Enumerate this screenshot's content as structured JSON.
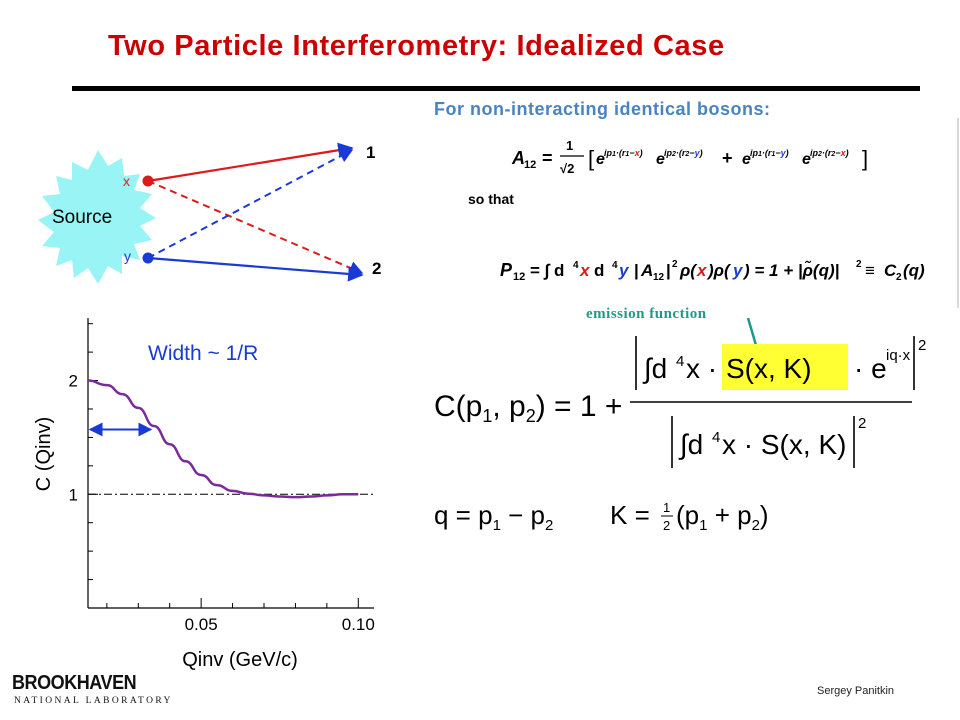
{
  "title": "Two Particle Interferometry: Idealized Case",
  "subtitle": "For non-interacting identical bosons:",
  "diagram": {
    "source_label": "Source",
    "point_x": "x",
    "point_y": "y",
    "detector_1": "1",
    "detector_2": "2",
    "colors": {
      "red": "#dd1a1a",
      "blue": "#1a3ad6",
      "source_fill": "#99f5f5"
    }
  },
  "equations": {
    "a12_lhs": "A",
    "a12_sub": "12",
    "so_that": "so that",
    "p12_lhs": "P",
    "emission_function_label": "emission function"
  },
  "chart_data": {
    "type": "line",
    "title": "Width ~ 1/R",
    "xlabel": "Qinv (GeV/c)",
    "ylabel": "C (Qinv)",
    "x_tick_labels": [
      "0.05",
      "0.10"
    ],
    "y_tick_labels": [
      "1",
      "2"
    ],
    "xlim": [
      0.014,
      0.105
    ],
    "ylim": [
      0.0,
      2.55
    ],
    "baseline": 1,
    "series": [
      {
        "color": "#7a2a99",
        "x": [
          0.014,
          0.02,
          0.025,
          0.03,
          0.035,
          0.04,
          0.045,
          0.05,
          0.055,
          0.06,
          0.065,
          0.07,
          0.075,
          0.08,
          0.085,
          0.09,
          0.095,
          0.1
        ],
        "y": [
          2.0,
          1.96,
          1.88,
          1.76,
          1.6,
          1.44,
          1.29,
          1.17,
          1.08,
          1.03,
          1.005,
          0.99,
          0.98,
          0.975,
          0.98,
          0.99,
          1.0,
          1.0
        ]
      }
    ],
    "width_arrow": {
      "x_start": 0.014,
      "x_end": 0.034,
      "y": 1.57
    }
  },
  "author": "Sergey Panitkin",
  "logo": {
    "main": "BROOKHAVEN",
    "sub": "NATIONAL LABORATORY"
  }
}
